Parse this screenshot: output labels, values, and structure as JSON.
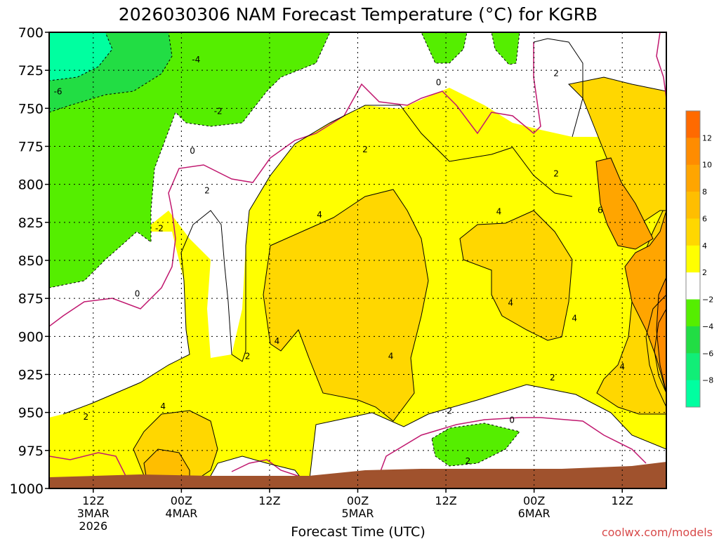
{
  "chart_data": {
    "type": "heatmap",
    "title": "2026030306 NAM Forecast Temperature (°C) for KGRB",
    "xlabel": "Forecast Time (UTC)",
    "ylabel": "",
    "y_axis": {
      "ticks": [
        "700",
        "725",
        "750",
        "775",
        "800",
        "825",
        "850",
        "875",
        "900",
        "925",
        "950",
        "975",
        "1000"
      ],
      "range": [
        700,
        1000
      ],
      "inverted": true
    },
    "x_axis": {
      "ticks": [
        {
          "hour": 6,
          "lines": [
            "12Z",
            "3MAR",
            "2026"
          ]
        },
        {
          "hour": 18,
          "lines": [
            "00Z",
            "4MAR"
          ]
        },
        {
          "hour": 30,
          "lines": [
            "12Z"
          ]
        },
        {
          "hour": 42,
          "lines": [
            "00Z",
            "5MAR"
          ]
        },
        {
          "hour": 54,
          "lines": [
            "12Z"
          ]
        },
        {
          "hour": 66,
          "lines": [
            "00Z",
            "6MAR"
          ]
        },
        {
          "hour": 78,
          "lines": [
            "12Z"
          ]
        }
      ],
      "range": [
        0,
        84
      ]
    },
    "colorbar": {
      "labels": [
        "12",
        "10",
        "8",
        "6",
        "4",
        "2",
        "−2",
        "−4",
        "−6",
        "−8"
      ],
      "bins": [
        {
          "color": "#ff6a00"
        },
        {
          "color": "#ff8c00"
        },
        {
          "color": "#ffa500"
        },
        {
          "color": "#ffbe00"
        },
        {
          "color": "#ffd700"
        },
        {
          "color": "#ffff00"
        },
        {
          "color": "#ffffff"
        },
        {
          "color": "#55ee00"
        },
        {
          "color": "#22dd44"
        },
        {
          "color": "#11ee77"
        },
        {
          "color": "#00ffa0"
        }
      ]
    },
    "contour_labels": [
      {
        "text": "-6",
        "t": 1.2,
        "p": 739
      },
      {
        "text": "-4",
        "t": 20.0,
        "p": 718
      },
      {
        "text": "-2",
        "t": 23.0,
        "p": 752
      },
      {
        "text": "-2",
        "t": 15.0,
        "p": 829
      },
      {
        "text": "0",
        "t": 19.5,
        "p": 778
      },
      {
        "text": "0",
        "t": 12.0,
        "p": 872
      },
      {
        "text": "0",
        "t": 53.0,
        "p": 733
      },
      {
        "text": "0",
        "t": 63.0,
        "p": 955
      },
      {
        "text": "2",
        "t": 21.5,
        "p": 804
      },
      {
        "text": "2",
        "t": 5.0,
        "p": 953
      },
      {
        "text": "2",
        "t": 27.0,
        "p": 913
      },
      {
        "text": "2",
        "t": 43.0,
        "p": 777
      },
      {
        "text": "2",
        "t": 54.5,
        "p": 949
      },
      {
        "text": "2",
        "t": 57.0,
        "p": 982
      },
      {
        "text": "2",
        "t": 69.0,
        "p": 727
      },
      {
        "text": "2",
        "t": 69.0,
        "p": 793
      },
      {
        "text": "2",
        "t": 68.5,
        "p": 927
      },
      {
        "text": "4",
        "t": 15.5,
        "p": 946
      },
      {
        "text": "4",
        "t": 36.8,
        "p": 820
      },
      {
        "text": "4",
        "t": 31.0,
        "p": 903
      },
      {
        "text": "4",
        "t": 46.5,
        "p": 913
      },
      {
        "text": "4",
        "t": 61.2,
        "p": 818
      },
      {
        "text": "4",
        "t": 62.8,
        "p": 878
      },
      {
        "text": "4",
        "t": 71.5,
        "p": 888
      },
      {
        "text": "4",
        "t": 78.0,
        "p": 920
      },
      {
        "text": "6",
        "t": 75.0,
        "p": 817
      }
    ]
  },
  "credit": "coolwx.com/models"
}
